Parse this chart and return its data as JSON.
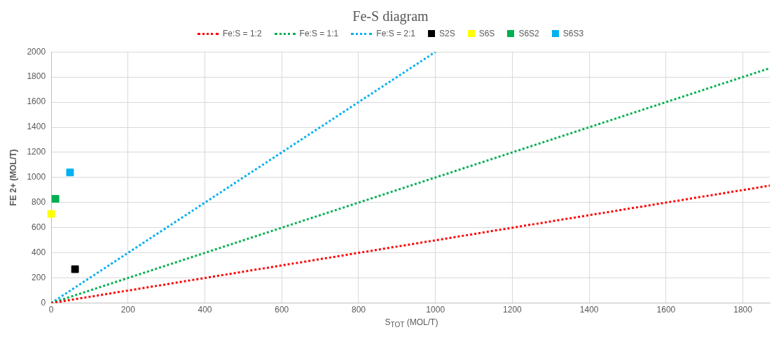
{
  "chart_data": {
    "type": "scatter",
    "title": "Fe-S diagram",
    "xlabel": "S$_{TOT}$ (MOL/T)",
    "ylabel": "FE 2+ (MOL/T)",
    "xlim": [
      0,
      1870
    ],
    "xticks": [
      0,
      200,
      400,
      600,
      800,
      1000,
      1200,
      1400,
      1600,
      1800
    ],
    "ylim": [
      0,
      2000
    ],
    "yticks": [
      0,
      200,
      400,
      600,
      800,
      1000,
      1200,
      1400,
      1600,
      1800,
      2000
    ],
    "grid": true,
    "legend": "top",
    "series": [
      {
        "name": "Fe:S = 1:2",
        "type": "line",
        "color": "#ff0000",
        "line_style": "dotted",
        "marker": "none",
        "x": [
          0,
          1870
        ],
        "values": [
          0,
          935
        ]
      },
      {
        "name": "Fe:S = 1:1",
        "type": "line",
        "color": "#00b050",
        "line_style": "dotted",
        "marker": "none",
        "x": [
          0,
          1870
        ],
        "values": [
          0,
          1870
        ]
      },
      {
        "name": "Fe:S = 2:1",
        "type": "line",
        "color": "#00b0f0",
        "line_style": "dotted",
        "marker": "none",
        "x": [
          0,
          1000
        ],
        "values": [
          0,
          2000
        ]
      },
      {
        "name": "S2S",
        "type": "scatter",
        "color": "#000000",
        "marker": "square",
        "x": [
          62
        ],
        "values": [
          270
        ]
      },
      {
        "name": "S6S",
        "type": "scatter",
        "color": "#ffff00",
        "marker": "square",
        "x": [
          0
        ],
        "values": [
          710
        ]
      },
      {
        "name": "S6S2",
        "type": "scatter",
        "color": "#00b050",
        "marker": "square",
        "x": [
          11
        ],
        "values": [
          830
        ]
      },
      {
        "name": "S6S3",
        "type": "scatter",
        "color": "#00b0f0",
        "marker": "square",
        "x": [
          49
        ],
        "values": [
          1040
        ]
      }
    ]
  }
}
